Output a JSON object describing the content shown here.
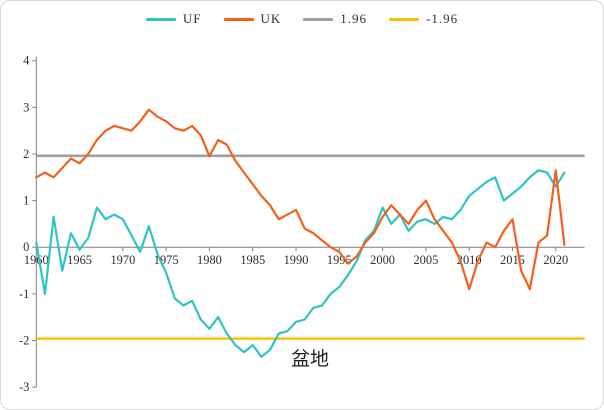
{
  "window": {
    "background": "#FFFFFF",
    "border_color": "#D9D9D9"
  },
  "legend": {
    "items": [
      {
        "label": "UF",
        "color": "#2EC4C6"
      },
      {
        "label": "UK",
        "color": "#F4601A"
      },
      {
        "label": "1.96",
        "color": "#A0A0A0"
      },
      {
        "label": "-1.96",
        "color": "#FFC000"
      }
    ]
  },
  "title": {
    "text": "盆地"
  },
  "colors": {
    "uf": "#2EC4C6",
    "uk": "#F4601A",
    "upper_bound": "#A0A0A0",
    "lower_bound": "#FFC000",
    "axis": "#808080",
    "tick_text": "#303030"
  },
  "chart_data": {
    "type": "line",
    "title": "盆地",
    "xlabel": "",
    "ylabel": "",
    "ylim": [
      -3,
      4
    ],
    "yticks": [
      4,
      3,
      2,
      1,
      0,
      -1,
      -2,
      -3
    ],
    "xticks": [
      1960,
      1965,
      1970,
      1975,
      1980,
      1985,
      1990,
      1995,
      2000,
      2005,
      2010,
      2015,
      2020
    ],
    "grid": false,
    "legend_position": "top",
    "x": [
      1960,
      1961,
      1962,
      1963,
      1964,
      1965,
      1966,
      1967,
      1968,
      1969,
      1970,
      1971,
      1972,
      1973,
      1974,
      1975,
      1976,
      1977,
      1978,
      1979,
      1980,
      1981,
      1982,
      1983,
      1984,
      1985,
      1986,
      1987,
      1988,
      1989,
      1990,
      1991,
      1992,
      1993,
      1994,
      1995,
      1996,
      1997,
      1998,
      1999,
      2000,
      2001,
      2002,
      2003,
      2004,
      2005,
      2006,
      2007,
      2008,
      2009,
      2010,
      2011,
      2012,
      2013,
      2014,
      2015,
      2016,
      2017,
      2018,
      2019,
      2020,
      2021
    ],
    "series": [
      {
        "name": "UF",
        "color": "#2EC4C6",
        "values": [
          0.1,
          -1.0,
          0.65,
          -0.5,
          0.3,
          -0.05,
          0.2,
          0.85,
          0.6,
          0.7,
          0.6,
          0.25,
          -0.1,
          0.45,
          -0.15,
          -0.55,
          -1.1,
          -1.25,
          -1.15,
          -1.55,
          -1.75,
          -1.5,
          -1.85,
          -2.1,
          -2.25,
          -2.1,
          -2.35,
          -2.2,
          -1.85,
          -1.8,
          -1.6,
          -1.55,
          -1.3,
          -1.25,
          -1.0,
          -0.85,
          -0.6,
          -0.3,
          0.15,
          0.35,
          0.85,
          0.5,
          0.7,
          0.35,
          0.55,
          0.6,
          0.5,
          0.65,
          0.6,
          0.8,
          1.1,
          1.25,
          1.4,
          1.5,
          1.0,
          1.15,
          1.3,
          1.5,
          1.65,
          1.6,
          1.3,
          1.6
        ]
      },
      {
        "name": "UK",
        "color": "#F4601A",
        "values": [
          1.5,
          1.6,
          1.5,
          1.7,
          1.9,
          1.8,
          2.0,
          2.3,
          2.5,
          2.6,
          2.55,
          2.5,
          2.7,
          2.95,
          2.8,
          2.7,
          2.55,
          2.5,
          2.6,
          2.4,
          1.95,
          2.3,
          2.2,
          1.85,
          1.6,
          1.35,
          1.1,
          0.9,
          0.6,
          0.7,
          0.8,
          0.4,
          0.3,
          0.15,
          0.0,
          -0.1,
          -0.35,
          -0.2,
          0.1,
          0.3,
          0.65,
          0.9,
          0.7,
          0.5,
          0.8,
          1.0,
          0.6,
          0.35,
          0.1,
          -0.3,
          -0.9,
          -0.3,
          0.1,
          0.0,
          0.35,
          0.6,
          -0.5,
          -0.9,
          0.1,
          0.25,
          1.65,
          0.05
        ]
      }
    ],
    "hlines": [
      {
        "name": "1.96",
        "value": 1.96,
        "color": "#A0A0A0"
      },
      {
        "name": "-1.96",
        "value": -1.96,
        "color": "#FFC000"
      }
    ]
  }
}
